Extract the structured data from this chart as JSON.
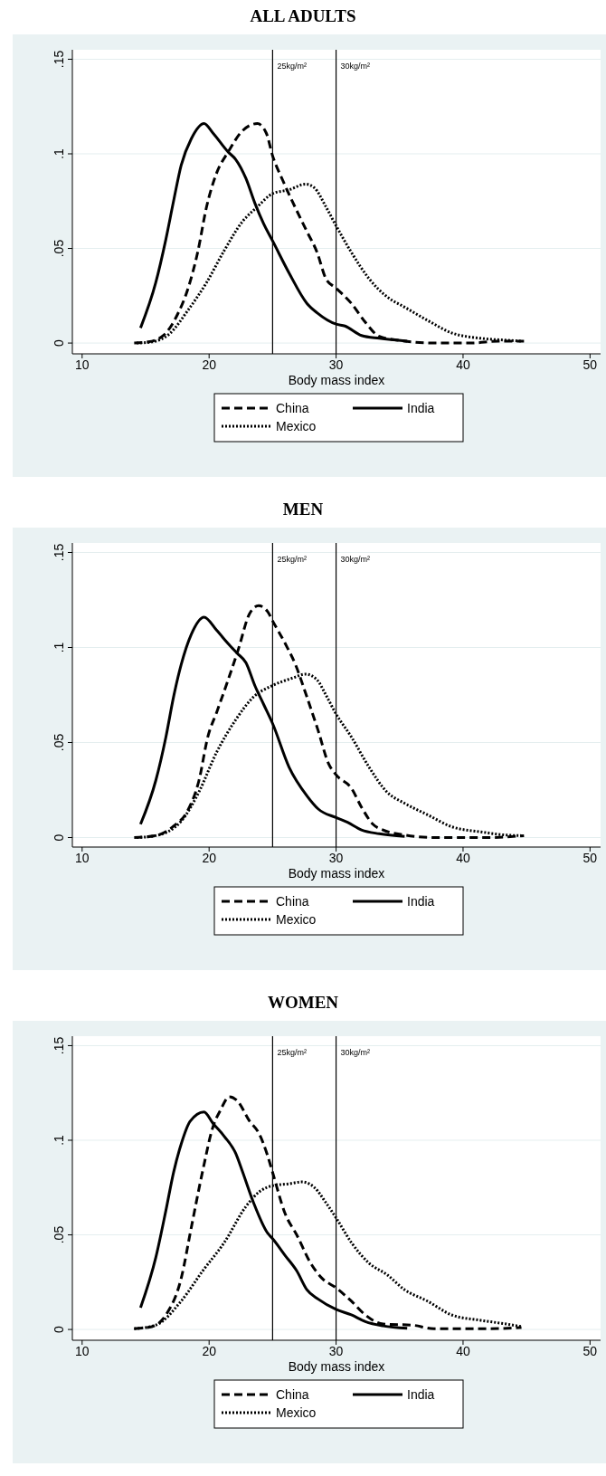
{
  "chart_data": [
    {
      "type": "line",
      "title": "ALL ADULTS",
      "xlabel": "Body mass index",
      "xlim": [
        9.23,
        50.83
      ],
      "ylim": [
        -0.0057,
        0.155
      ],
      "xticks": [
        10,
        20,
        30,
        40,
        50
      ],
      "yticks": [
        {
          "value": 0,
          "label": "0"
        },
        {
          "value": 0.05,
          "label": ".05"
        },
        {
          "value": 0.1,
          "label": ".1"
        },
        {
          "value": 0.15,
          "label": ".15"
        }
      ],
      "grid": "y",
      "legend": "bottom",
      "ref_lines": [
        {
          "axis": "x",
          "value": 25,
          "label": "25kg/m²",
          "color": "#000000"
        },
        {
          "axis": "x",
          "value": 30,
          "label": "30kg/m²",
          "color": "#000000"
        }
      ],
      "series": [
        {
          "name": "China",
          "color": "#000000",
          "line_style": "dashed",
          "x": [
            14.1,
            15.2,
            16.4,
            17.5,
            18.3,
            19.1,
            19.8,
            20.6,
            21.5,
            22.6,
            23.8,
            24.5,
            25.0,
            25.8,
            26.9,
            27.7,
            28.5,
            29.2,
            30.0,
            31.2,
            32.3,
            33.4,
            34.9,
            37.7,
            40.6,
            42.8,
            44.8
          ],
          "values": [
            0,
            0.0006,
            0.004,
            0.015,
            0.028,
            0.048,
            0.072,
            0.09,
            0.101,
            0.112,
            0.116,
            0.111,
            0.099,
            0.086,
            0.07,
            0.059,
            0.048,
            0.034,
            0.029,
            0.021,
            0.011,
            0.0035,
            0.0015,
            0,
            0,
            0.001,
            0.001
          ]
        },
        {
          "name": "India",
          "color": "#000000",
          "line_style": "solid",
          "x": [
            14.6,
            15.8,
            16.6,
            17.2,
            17.8,
            18.6,
            19.6,
            20.3,
            21.5,
            22.1,
            22.9,
            23.6,
            24.3,
            25.0,
            26.3,
            27.7,
            28.5,
            30.0,
            30.7,
            32.0,
            33.4,
            35.6
          ],
          "values": [
            0.008,
            0.032,
            0.055,
            0.075,
            0.094,
            0.108,
            0.116,
            0.111,
            0.101,
            0.097,
            0.087,
            0.074,
            0.063,
            0.054,
            0.037,
            0.021,
            0.016,
            0.01,
            0.009,
            0.004,
            0.0025,
            0.001
          ]
        },
        {
          "name": "Mexico",
          "color": "#000000",
          "line_style": "dotted",
          "x": [
            14.3,
            15.5,
            16.9,
            18.3,
            19.8,
            21.2,
            22.6,
            23.8,
            25.0,
            26.3,
            27.6,
            28.3,
            29.2,
            30.0,
            31.2,
            32.6,
            34.0,
            35.4,
            37.2,
            39.1,
            41.4,
            43.4,
            44.6
          ],
          "values": [
            0,
            0.0006,
            0.005,
            0.017,
            0.032,
            0.049,
            0.064,
            0.072,
            0.079,
            0.081,
            0.084,
            0.082,
            0.072,
            0.062,
            0.048,
            0.034,
            0.0245,
            0.019,
            0.012,
            0.0054,
            0.0025,
            0.0015,
            0.001
          ]
        }
      ]
    },
    {
      "type": "line",
      "title": "MEN",
      "xlabel": "Body mass index",
      "xlim": [
        9.23,
        50.83
      ],
      "ylim": [
        -0.005,
        0.155
      ],
      "xticks": [
        10,
        20,
        30,
        40,
        50
      ],
      "yticks": [
        {
          "value": 0,
          "label": "0"
        },
        {
          "value": 0.05,
          "label": ".05"
        },
        {
          "value": 0.1,
          "label": ".1"
        },
        {
          "value": 0.15,
          "label": ".15"
        }
      ],
      "grid": "y",
      "legend": "bottom",
      "ref_lines": [
        {
          "axis": "x",
          "value": 25,
          "label": "25kg/m²",
          "color": "#000000"
        },
        {
          "axis": "x",
          "value": 30,
          "label": "30kg/m²",
          "color": "#000000"
        }
      ],
      "series": [
        {
          "name": "China",
          "color": "#000000",
          "line_style": "dashed",
          "x": [
            14.1,
            15.8,
            17.2,
            18.3,
            19.2,
            19.9,
            20.6,
            21.5,
            22.3,
            23.2,
            23.9,
            24.6,
            25.0,
            26.0,
            26.8,
            27.7,
            28.6,
            29.4,
            30.0,
            31.2,
            32.0,
            32.9,
            33.7,
            35.4,
            37.7,
            42.0,
            44.8
          ],
          "values": [
            0,
            0.001,
            0.006,
            0.014,
            0.03,
            0.053,
            0.066,
            0.083,
            0.099,
            0.118,
            0.122,
            0.119,
            0.114,
            0.102,
            0.091,
            0.074,
            0.056,
            0.039,
            0.033,
            0.026,
            0.016,
            0.007,
            0.004,
            0.0013,
            0,
            0,
            0.001
          ]
        },
        {
          "name": "India",
          "color": "#000000",
          "line_style": "solid",
          "x": [
            14.6,
            15.8,
            16.6,
            17.2,
            17.8,
            18.6,
            19.6,
            20.6,
            21.5,
            22.2,
            22.9,
            23.6,
            24.3,
            25.0,
            26.3,
            27.7,
            28.6,
            30.0,
            30.9,
            32.0,
            33.4,
            35.4
          ],
          "values": [
            0.007,
            0.03,
            0.053,
            0.074,
            0.091,
            0.107,
            0.116,
            0.109,
            0.102,
            0.097,
            0.092,
            0.08,
            0.07,
            0.06,
            0.037,
            0.022,
            0.015,
            0.0105,
            0.008,
            0.004,
            0.002,
            0.0006
          ]
        },
        {
          "name": "Mexico",
          "color": "#000000",
          "line_style": "dotted",
          "x": [
            14.3,
            15.8,
            17.8,
            19.2,
            20.6,
            22.1,
            23.5,
            25.0,
            26.6,
            27.6,
            28.5,
            29.2,
            30.0,
            31.2,
            32.6,
            34.0,
            35.4,
            37.2,
            39.1,
            41.4,
            43.4,
            44.6
          ],
          "values": [
            0,
            0.001,
            0.0086,
            0.024,
            0.045,
            0.062,
            0.074,
            0.08,
            0.084,
            0.086,
            0.083,
            0.075,
            0.065,
            0.053,
            0.037,
            0.024,
            0.018,
            0.012,
            0.0057,
            0.003,
            0.0013,
            0.001
          ]
        }
      ]
    },
    {
      "type": "line",
      "title": "WOMEN",
      "xlabel": "Body mass index",
      "xlim": [
        9.23,
        50.83
      ],
      "ylim": [
        -0.0057,
        0.155
      ],
      "xticks": [
        10,
        20,
        30,
        40,
        50
      ],
      "yticks": [
        {
          "value": 0,
          "label": "0"
        },
        {
          "value": 0.05,
          "label": ".05"
        },
        {
          "value": 0.1,
          "label": ".1"
        },
        {
          "value": 0.15,
          "label": ".15"
        }
      ],
      "grid": "y",
      "legend": "bottom",
      "ref_lines": [
        {
          "axis": "x",
          "value": 25,
          "label": "25kg/m²",
          "color": "#000000"
        },
        {
          "axis": "x",
          "value": 30,
          "label": "30kg/m²",
          "color": "#000000"
        }
      ],
      "series": [
        {
          "name": "China",
          "color": "#000000",
          "line_style": "dashed",
          "x": [
            14.1,
            15.5,
            16.6,
            17.8,
            18.6,
            19.5,
            20.3,
            20.9,
            21.6,
            22.2,
            23.2,
            23.9,
            24.6,
            25.0,
            26.0,
            26.9,
            28.0,
            28.9,
            30.0,
            31.2,
            32.3,
            33.7,
            36.0,
            37.7,
            42.0,
            44.6
          ],
          "values": [
            0.0004,
            0.0015,
            0.0077,
            0.027,
            0.054,
            0.084,
            0.107,
            0.116,
            0.123,
            0.121,
            0.11,
            0.104,
            0.092,
            0.083,
            0.061,
            0.05,
            0.035,
            0.027,
            0.022,
            0.015,
            0.0077,
            0.0029,
            0.0023,
            0.0004,
            0.0004,
            0.001
          ]
        },
        {
          "name": "India",
          "color": "#000000",
          "line_style": "solid",
          "x": [
            14.6,
            15.8,
            16.6,
            17.2,
            17.8,
            18.5,
            19.6,
            20.3,
            21.2,
            22.1,
            22.6,
            23.5,
            24.6,
            25.0,
            26.0,
            26.9,
            27.7,
            28.6,
            30.0,
            31.2,
            32.3,
            33.7,
            35.6
          ],
          "values": [
            0.0115,
            0.038,
            0.063,
            0.083,
            0.098,
            0.11,
            0.115,
            0.109,
            0.102,
            0.093,
            0.084,
            0.067,
            0.051,
            0.048,
            0.039,
            0.031,
            0.021,
            0.016,
            0.0106,
            0.0077,
            0.0042,
            0.0019,
            0.0006
          ]
        },
        {
          "name": "Mexico",
          "color": "#000000",
          "line_style": "dotted",
          "x": [
            14.1,
            15.8,
            17.8,
            19.5,
            21.2,
            22.9,
            24.0,
            25.0,
            26.3,
            27.3,
            28.3,
            29.2,
            30.0,
            31.2,
            32.6,
            34.0,
            35.4,
            37.2,
            39.1,
            41.4,
            43.4,
            44.6
          ],
          "values": [
            0.0004,
            0.0023,
            0.015,
            0.031,
            0.046,
            0.065,
            0.073,
            0.076,
            0.077,
            0.078,
            0.075,
            0.067,
            0.059,
            0.046,
            0.035,
            0.029,
            0.021,
            0.015,
            0.0077,
            0.0048,
            0.0029,
            0.0015
          ]
        }
      ]
    }
  ]
}
